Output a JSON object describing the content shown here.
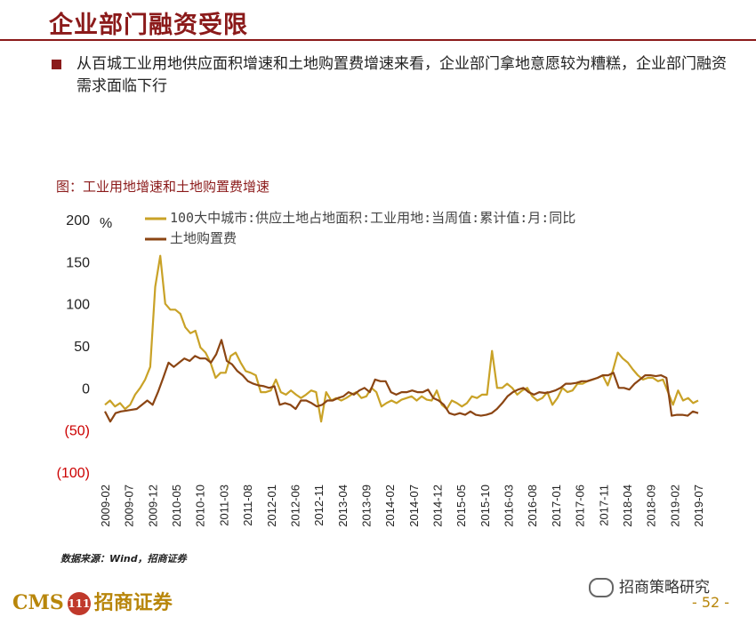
{
  "header": {
    "title": "企业部门融资受限"
  },
  "bullet": {
    "text": "从百城工业用地供应面积增速和土地购置费增速来看，企业部门拿地意愿较为糟糕，企业部门融资需求面临下行"
  },
  "figure": {
    "caption": "图：工业用地增速和土地购置费增速"
  },
  "source": "数据来源：Wind，招商证券",
  "footer": {
    "brand": "CMS",
    "brand_cn": "招商证券",
    "badge": "111",
    "wechat": "招商策略研究",
    "page": "- 52 -"
  },
  "colors": {
    "brand": "#8b1a1a",
    "series1": "#c9a227",
    "series2": "#8b4513",
    "negative": "#cc0000"
  },
  "chart_data": {
    "type": "line",
    "unit": "%",
    "ylim": [
      -100,
      200
    ],
    "yticks": [
      200,
      150,
      100,
      50,
      0,
      -50,
      -100
    ],
    "ytick_labels": [
      "200",
      "150",
      "100",
      "50",
      "0",
      "(50)",
      "(100)"
    ],
    "xlabels": [
      "2009-02",
      "2009-07",
      "2009-12",
      "2010-05",
      "2010-10",
      "2011-03",
      "2011-08",
      "2012-01",
      "2012-06",
      "2012-11",
      "2013-04",
      "2013-09",
      "2014-02",
      "2014-07",
      "2014-12",
      "2015-05",
      "2015-10",
      "2016-03",
      "2016-08",
      "2017-01",
      "2017-06",
      "2017-11",
      "2018-04",
      "2018-09",
      "2019-02",
      "2019-07"
    ],
    "legend_position": "top",
    "grid": false,
    "series": [
      {
        "name": "100大中城市:供应土地占地面积:工业用地:当周值:累计值:月:同比",
        "color": "#c9a227",
        "values": [
          -20,
          -15,
          -22,
          -18,
          -25,
          -20,
          -8,
          0,
          10,
          25,
          120,
          157,
          100,
          93,
          93,
          88,
          72,
          65,
          68,
          48,
          42,
          30,
          12,
          18,
          18,
          38,
          42,
          30,
          20,
          18,
          15,
          -5,
          -5,
          -3,
          10,
          -5,
          -8,
          -3,
          -8,
          -12,
          -8,
          -3,
          -5,
          -40,
          -5,
          -15,
          -12,
          -15,
          -12,
          -8,
          -5,
          -12,
          -10,
          0,
          -5,
          -22,
          -18,
          -15,
          -18,
          -14,
          -12,
          -10,
          -15,
          -10,
          -14,
          -15,
          -3,
          -20,
          -25,
          -15,
          -18,
          -22,
          -18,
          -10,
          -12,
          -8,
          -8,
          44,
          0,
          0,
          5,
          0,
          -8,
          -3,
          0,
          -10,
          -15,
          -12,
          -5,
          -20,
          -12,
          0,
          -5,
          -3,
          5,
          5,
          8,
          10,
          12,
          15,
          3,
          20,
          42,
          35,
          30,
          22,
          15,
          10,
          12,
          12,
          8,
          10,
          -5,
          -20,
          -3,
          -15,
          -12,
          -18,
          -15
        ]
      },
      {
        "name": "土地购置费",
        "color": "#8b4513",
        "values": [
          -28,
          -40,
          -30,
          -28,
          -27,
          -26,
          -25,
          -20,
          -15,
          -20,
          -5,
          12,
          30,
          25,
          30,
          35,
          32,
          38,
          35,
          35,
          30,
          40,
          57,
          32,
          28,
          20,
          15,
          8,
          5,
          3,
          2,
          0,
          2,
          -20,
          -18,
          -20,
          -25,
          -15,
          -15,
          -18,
          -22,
          -20,
          -15,
          -15,
          -12,
          -10,
          -5,
          -8,
          -3,
          0,
          -5,
          10,
          8,
          8,
          -5,
          -8,
          -5,
          -5,
          -3,
          -5,
          -5,
          -2,
          -12,
          -15,
          -20,
          -30,
          -32,
          -30,
          -32,
          -28,
          -32,
          -33,
          -32,
          -30,
          -25,
          -18,
          -10,
          -5,
          -2,
          0,
          -5,
          -8,
          -5,
          -6,
          -5,
          -3,
          0,
          5,
          5,
          6,
          8,
          8,
          10,
          12,
          15,
          15,
          18,
          0,
          0,
          -2,
          5,
          10,
          15,
          15,
          14,
          15,
          12,
          -33,
          -32,
          -32,
          -33,
          -28,
          -30
        ]
      }
    ]
  }
}
